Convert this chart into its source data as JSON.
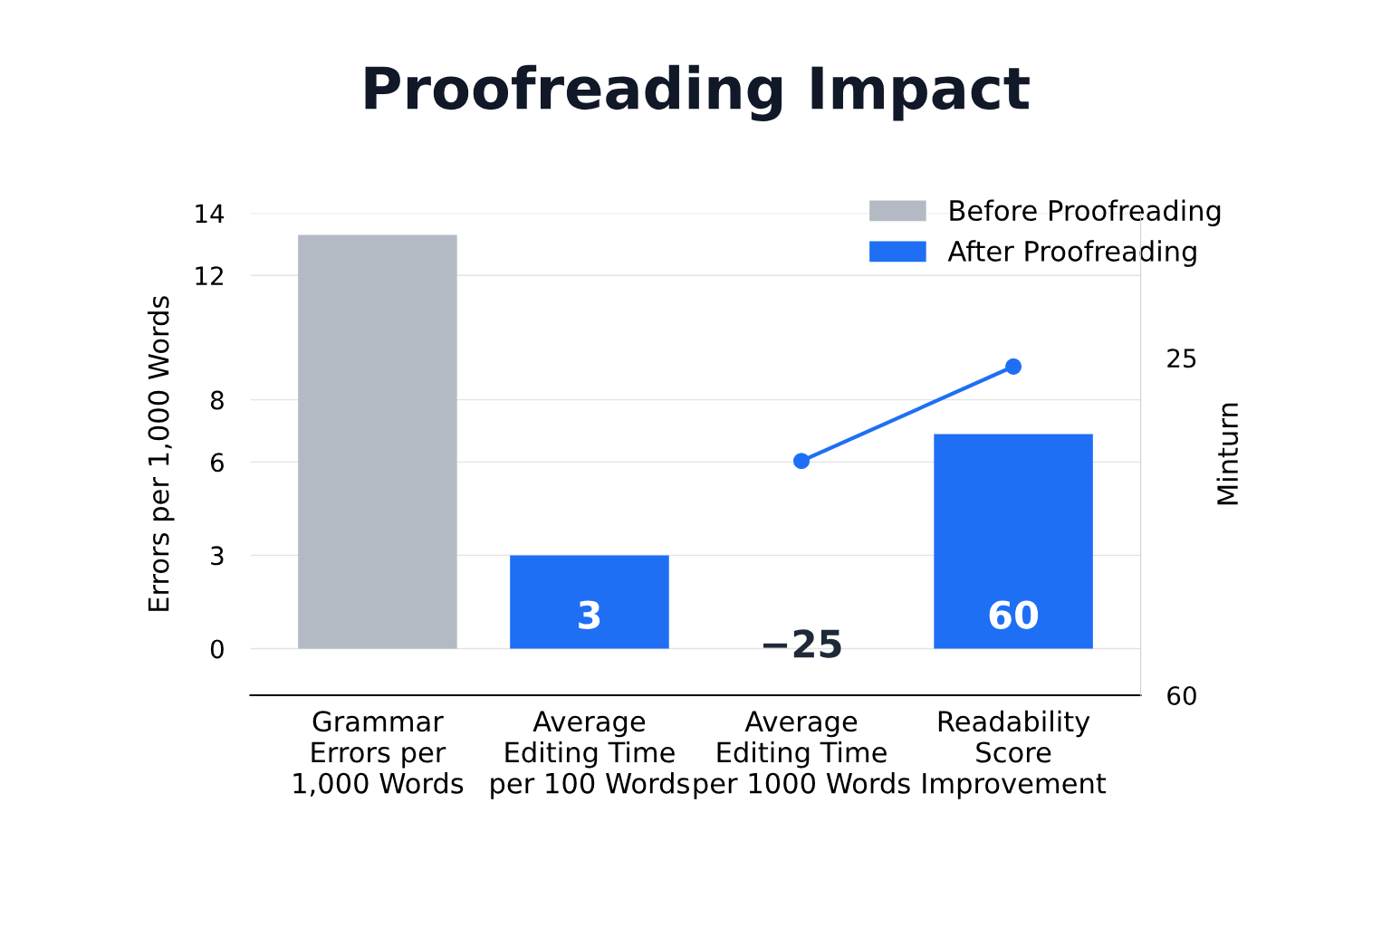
{
  "chart_data": {
    "type": "bar",
    "title": "Proofreading Impact",
    "ylabel": "Errors per 1,000 Words",
    "y2label": "Minturn",
    "categories": [
      "Grammar\nErrors per\n1,000 Words",
      "Average\nEditing Time\nper 100 Words",
      "Average\nEditing Time\nper 1000 Words",
      "Readability\nScore\nImprovement"
    ],
    "series": [
      {
        "name": "Before Proofreading",
        "color": "#b4bac4",
        "values": [
          13.3,
          null,
          null,
          null
        ]
      },
      {
        "name": "After Proofreading",
        "color": "#1f6ff5",
        "values": [
          null,
          3,
          null,
          6.9
        ],
        "value_labels": [
          null,
          "3",
          null,
          null
        ]
      },
      {
        "type": "line",
        "axis": "y2",
        "color": "#1f6ff5",
        "marker": "circle",
        "values": [
          null,
          null,
          35.7,
          25.9
        ]
      }
    ],
    "annotations": [
      "−25",
      "60"
    ],
    "ylim": [
      -1.5,
      14
    ],
    "yticks": [
      0,
      3,
      6,
      8,
      12,
      14
    ],
    "y2lim": [
      60,
      10
    ],
    "y2ticks": [
      25,
      60
    ],
    "grid": "y",
    "legend": "top right"
  }
}
